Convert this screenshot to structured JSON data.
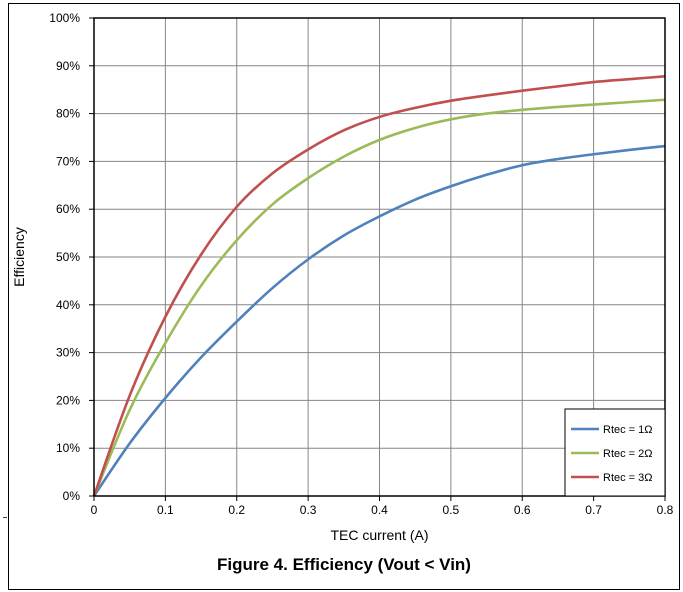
{
  "chart_data": {
    "type": "line",
    "xlabel": "TEC current (A)",
    "ylabel": "Efficiency",
    "xlim": [
      0,
      0.8
    ],
    "ylim": [
      0,
      100
    ],
    "x_ticks": [
      "0",
      "0.1",
      "0.2",
      "0.3",
      "0.4",
      "0.5",
      "0.6",
      "0.7",
      "0.8"
    ],
    "y_ticks": [
      "0%",
      "10%",
      "20%",
      "30%",
      "40%",
      "50%",
      "60%",
      "70%",
      "80%",
      "90%",
      "100%"
    ],
    "grid": true,
    "legend_position": "bottom-right",
    "x": [
      0,
      0.05,
      0.1,
      0.15,
      0.2,
      0.25,
      0.3,
      0.35,
      0.4,
      0.45,
      0.5,
      0.55,
      0.6,
      0.65,
      0.7,
      0.75,
      0.8
    ],
    "series": [
      {
        "name": "Rtec = 1Ω",
        "color": "#4f81bd",
        "values": [
          0,
          11,
          20.5,
          29,
          36.5,
          43.5,
          49.5,
          54.5,
          58.5,
          62,
          64.8,
          67.2,
          69.2,
          70.5,
          71.5,
          72.4,
          73.2
        ]
      },
      {
        "name": "Rtec = 2Ω",
        "color": "#9bbb59",
        "values": [
          0,
          18,
          32,
          44,
          53.5,
          61,
          66.5,
          71,
          74.5,
          77,
          78.8,
          80,
          80.8,
          81.4,
          81.9,
          82.4,
          82.9
        ]
      },
      {
        "name": "Rtec = 3Ω",
        "color": "#c0504d",
        "values": [
          0,
          21,
          37.5,
          50.5,
          60.5,
          67.5,
          72.5,
          76.5,
          79.3,
          81.2,
          82.7,
          83.8,
          84.8,
          85.7,
          86.6,
          87.2,
          87.8
        ]
      }
    ]
  },
  "caption": "Figure 4. Efficiency (Vout < Vin)"
}
